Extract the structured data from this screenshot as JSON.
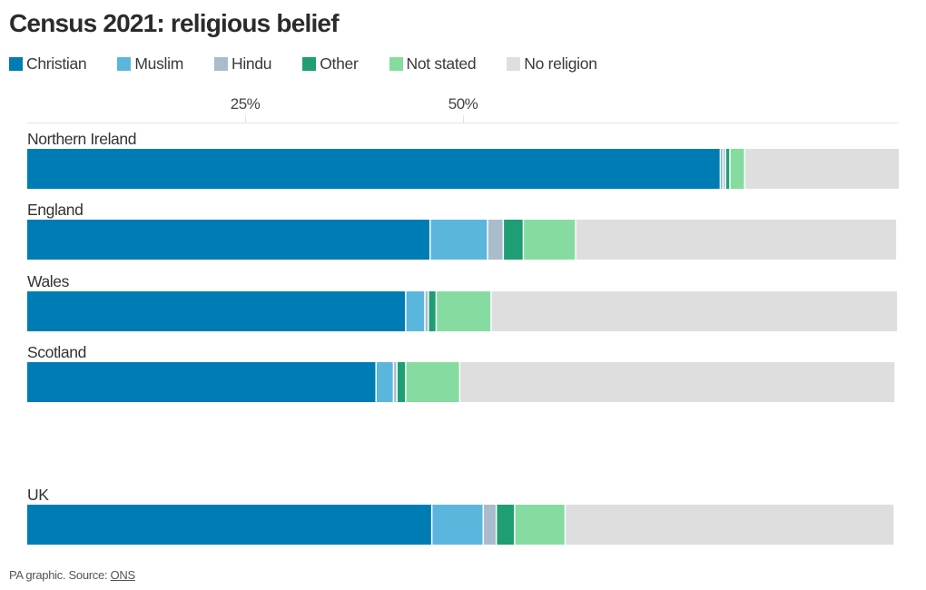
{
  "title": "Census 2021: religious belief",
  "legend": [
    {
      "label": "Christian",
      "color": "#007cb5"
    },
    {
      "label": "Muslim",
      "color": "#5bb6de"
    },
    {
      "label": "Hindu",
      "color": "#a9bccb"
    },
    {
      "label": "Other",
      "color": "#1f9e73"
    },
    {
      "label": "Not stated",
      "color": "#86dca0"
    },
    {
      "label": "No religion",
      "color": "#dedede"
    }
  ],
  "source": {
    "prefix": "PA graphic. Source: ",
    "link_label": "ONS"
  },
  "chart_data": {
    "type": "bar",
    "orientation": "horizontal",
    "stacked": true,
    "title": "Census 2021: religious belief",
    "xlabel": "",
    "ylabel": "",
    "xlim": [
      0,
      100
    ],
    "x_ticks": [
      25,
      50
    ],
    "x_tick_labels": [
      "25%",
      "50%"
    ],
    "grid": false,
    "legend_position": "top-left",
    "categories": [
      "Northern Ireland",
      "England",
      "Wales",
      "Scotland",
      "UK"
    ],
    "series": [
      {
        "name": "Christian",
        "color": "#007cb5",
        "values": [
          79.6,
          46.3,
          43.5,
          40.1,
          46.5
        ]
      },
      {
        "name": "Muslim",
        "color": "#5bb6de",
        "values": [
          0.3,
          6.6,
          2.2,
          2.0,
          5.9
        ]
      },
      {
        "name": "Hindu",
        "color": "#a9bccb",
        "values": [
          0.3,
          1.8,
          0.4,
          0.4,
          1.5
        ]
      },
      {
        "name": "Other",
        "color": "#1f9e73",
        "values": [
          0.5,
          2.3,
          0.9,
          1.0,
          2.1
        ]
      },
      {
        "name": "Not stated",
        "color": "#86dca0",
        "values": [
          1.7,
          6.0,
          6.3,
          6.2,
          5.8
        ]
      },
      {
        "name": "No religion",
        "color": "#dedede",
        "values": [
          17.6,
          36.7,
          46.5,
          49.8,
          37.6
        ]
      }
    ]
  }
}
